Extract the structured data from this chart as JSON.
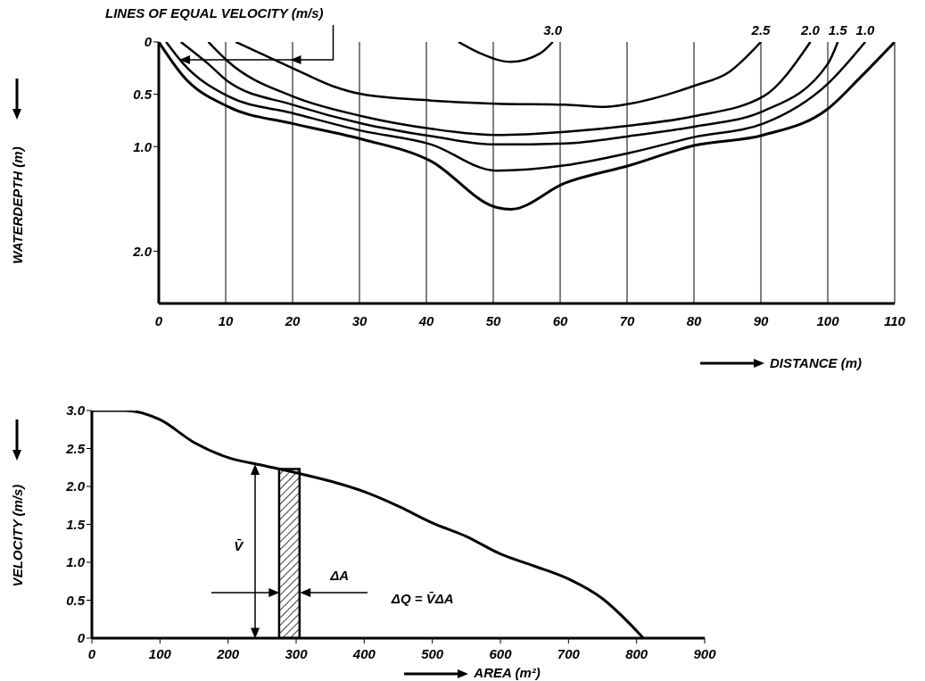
{
  "chart_data": [
    {
      "type": "line",
      "annotations": [
        {
          "text": "LINES OF EQUAL VELOCITY (m/s)",
          "x": 3,
          "y": 0.17
        }
      ],
      "xlabel": "DISTANCE (m)",
      "ylabel": "WATERDEPTH (m)",
      "xlim": [
        0,
        110
      ],
      "xticks": [
        0,
        10,
        20,
        30,
        40,
        50,
        60,
        70,
        80,
        90,
        100,
        110
      ],
      "ylim": [
        2.5,
        0
      ],
      "yticks": [
        0,
        0.5,
        {
          "value": 1,
          "label": "1.0"
        },
        {
          "value": 2,
          "label": "2.0"
        }
      ],
      "grid": "x",
      "series": [
        {
          "color": "#000000",
          "x": [
            0,
            3.7,
            10.4,
            20,
            30.4,
            40.7,
            50.4,
            52.6,
            60.7,
            70.4,
            80,
            90.4,
            100,
            105,
            110
          ],
          "values": [
            0,
            0.33,
            0.62,
            0.78,
            0.93,
            1.14,
            1.58,
            1.6,
            1.35,
            1.18,
            0.99,
            0.89,
            0.64,
            0.33,
            0
          ]
        },
        {
          "name": "1.0",
          "color": "#000000",
          "x": [
            1.1,
            3.7,
            10.4,
            20,
            30.4,
            40.7,
            50.4,
            60.7,
            70.4,
            80,
            90.4,
            100,
            105.6
          ],
          "values": [
            0,
            0.21,
            0.52,
            0.68,
            0.85,
            0.98,
            1.23,
            1.18,
            1.06,
            0.91,
            0.78,
            0.4,
            0
          ]
        },
        {
          "name": "1.5",
          "color": "#000000",
          "x": [
            3.3,
            7.4,
            10.4,
            20,
            30.4,
            40.7,
            50.4,
            60.7,
            70.4,
            80,
            90.4,
            100,
            101.5
          ],
          "values": [
            0,
            0.21,
            0.38,
            0.6,
            0.78,
            0.9,
            0.98,
            0.97,
            0.9,
            0.81,
            0.66,
            0.21,
            0
          ]
        },
        {
          "name": "2.0",
          "color": "#000000",
          "x": [
            7.4,
            10.4,
            20,
            30.4,
            40.7,
            50.4,
            60.7,
            70.4,
            80,
            90.4,
            97.4
          ],
          "values": [
            0,
            0.19,
            0.52,
            0.71,
            0.83,
            0.89,
            0.86,
            0.8,
            0.71,
            0.52,
            0
          ]
        },
        {
          "name": "2.5",
          "color": "#000000",
          "x": [
            11.5,
            20,
            25.9,
            30.4,
            40.7,
            50.4,
            60.7,
            66.7,
            70.4,
            80,
            85.2,
            90
          ],
          "values": [
            0,
            0.25,
            0.42,
            0.5,
            0.56,
            0.59,
            0.6,
            0.62,
            0.59,
            0.42,
            0.29,
            0
          ]
        },
        {
          "name": "3.0",
          "color": "#000000",
          "x": [
            44.8,
            48.1,
            52.6,
            57,
            58.9
          ],
          "values": [
            0,
            0.11,
            0.19,
            0.11,
            0
          ]
        }
      ]
    },
    {
      "type": "line",
      "annotations": [
        "V̄",
        "ΔA",
        "ΔQ = V̄ΔA"
      ],
      "xlabel": "AREA (m²)",
      "ylabel": "VELOCITY (m/s)",
      "xlim": [
        0,
        900
      ],
      "xticks": [
        0,
        100,
        200,
        300,
        400,
        500,
        600,
        700,
        800,
        900
      ],
      "ylim": [
        0,
        3
      ],
      "yticks": [
        0,
        0.5,
        {
          "value": 1,
          "label": "1.0"
        },
        1.5,
        {
          "value": 2,
          "label": "2.0"
        },
        2.5,
        {
          "value": 3,
          "label": "3.0"
        }
      ],
      "bands": [
        {
          "axis": "x",
          "from": 275,
          "to": 305
        }
      ],
      "series": [
        {
          "color": "#000000",
          "x": [
            0,
            50,
            100,
            150,
            200,
            250,
            300,
            350,
            400,
            450,
            500,
            550,
            600,
            650,
            700,
            750,
            790,
            810
          ],
          "values": [
            3,
            3,
            2.88,
            2.58,
            2.38,
            2.28,
            2.18,
            2.07,
            1.93,
            1.74,
            1.52,
            1.34,
            1.11,
            0.95,
            0.78,
            0.52,
            0.19,
            0
          ]
        }
      ]
    }
  ]
}
